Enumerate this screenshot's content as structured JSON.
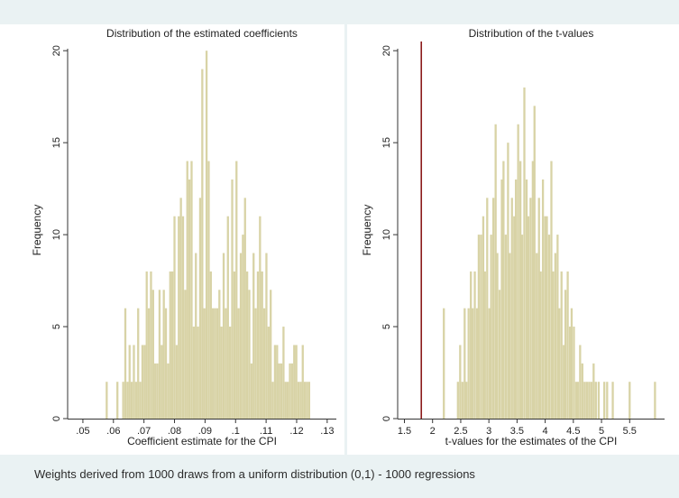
{
  "note": "Weights derived from 1000 draws from a uniform distribution (0,1) - 1000 regressions",
  "colors": {
    "bar": "#d8d3a6",
    "marker_line": "#8b1a1a",
    "panel_bg": "#ffffff",
    "page_bg": "#eaf2f3"
  },
  "chart_data": [
    {
      "type": "bar",
      "title": "Distribution of the estimated coefficients",
      "xlabel": "Coefficient estimate for the CPI",
      "ylabel": "Frequency",
      "xlim": [
        0.045,
        0.133
      ],
      "ylim": [
        0,
        20.5
      ],
      "xticks": [
        0.05,
        0.06,
        0.07,
        0.08,
        0.09,
        0.1,
        0.11,
        0.12,
        0.13
      ],
      "xtick_labels": [
        ".05",
        ".06",
        ".07",
        ".08",
        ".09",
        ".1",
        ".11",
        ".12",
        ".13"
      ],
      "yticks": [
        0,
        5,
        10,
        15,
        20
      ],
      "ytick_labels": [
        "0",
        "5",
        "10",
        "15",
        "20"
      ],
      "bin_width": 0.00068,
      "x": [
        0.0578,
        0.0613,
        0.0632,
        0.0639,
        0.0646,
        0.0653,
        0.066,
        0.0667,
        0.0674,
        0.0681,
        0.0688,
        0.0695,
        0.0702,
        0.0709,
        0.0716,
        0.0723,
        0.073,
        0.0737,
        0.0744,
        0.0751,
        0.0758,
        0.0765,
        0.0772,
        0.0779,
        0.0786,
        0.0793,
        0.08,
        0.0807,
        0.0814,
        0.0821,
        0.0828,
        0.0835,
        0.0842,
        0.0849,
        0.0856,
        0.0863,
        0.087,
        0.0877,
        0.0884,
        0.0891,
        0.0898,
        0.0905,
        0.0912,
        0.0919,
        0.0926,
        0.0933,
        0.094,
        0.0947,
        0.0954,
        0.0961,
        0.0968,
        0.0975,
        0.0982,
        0.0989,
        0.0996,
        0.1003,
        0.101,
        0.1017,
        0.1024,
        0.1031,
        0.1038,
        0.1045,
        0.1052,
        0.1059,
        0.1066,
        0.1073,
        0.108,
        0.1087,
        0.1094,
        0.1101,
        0.1108,
        0.1115,
        0.1122,
        0.1129,
        0.1136,
        0.1143,
        0.115,
        0.1157,
        0.1164,
        0.1171,
        0.1178,
        0.1185,
        0.1192,
        0.1199,
        0.1206,
        0.1213,
        0.122,
        0.1227,
        0.1234,
        0.1241
      ],
      "values": [
        2,
        2,
        2,
        6,
        2,
        4,
        2,
        4,
        2,
        6,
        2,
        4,
        4,
        8,
        6,
        8,
        7,
        3,
        3,
        7,
        4,
        7,
        6,
        3,
        8,
        8,
        11,
        4,
        11,
        12,
        11,
        7,
        14,
        13,
        14,
        5,
        9,
        5,
        12,
        19,
        6,
        20,
        14,
        8,
        6,
        6,
        6,
        7,
        5,
        9,
        6,
        11,
        5,
        13,
        8,
        14,
        6,
        9,
        10,
        12,
        8,
        7,
        3,
        9,
        6,
        8,
        11,
        8,
        6,
        9,
        5,
        7,
        2,
        4,
        4,
        3,
        3,
        5,
        2,
        2,
        3,
        3,
        4,
        4,
        2,
        2,
        4,
        2,
        2,
        2
      ]
    },
    {
      "type": "bar",
      "title": "Distribution of the t-values",
      "xlabel": "t-values for the estimates of the CPI",
      "ylabel": "Frequency",
      "xlim": [
        1.38,
        6.12
      ],
      "ylim": [
        0,
        20.5
      ],
      "xticks": [
        1.5,
        2,
        2.5,
        3,
        3.5,
        4,
        4.5,
        5,
        5.5
      ],
      "xtick_labels": [
        "1.5",
        "2",
        "2.5",
        "3",
        "3.5",
        "4",
        "4.5",
        "5",
        "5.5"
      ],
      "yticks": [
        0,
        5,
        10,
        15,
        20
      ],
      "ytick_labels": [
        "0",
        "5",
        "10",
        "15",
        "20"
      ],
      "vline": 1.8,
      "bin_width": 0.0368,
      "x": [
        2.2,
        2.45,
        2.49,
        2.53,
        2.57,
        2.6,
        2.64,
        2.68,
        2.71,
        2.75,
        2.79,
        2.82,
        2.86,
        2.9,
        2.93,
        2.97,
        3.01,
        3.04,
        3.08,
        3.12,
        3.15,
        3.19,
        3.23,
        3.26,
        3.3,
        3.34,
        3.37,
        3.41,
        3.45,
        3.48,
        3.52,
        3.56,
        3.59,
        3.63,
        3.67,
        3.7,
        3.74,
        3.78,
        3.81,
        3.85,
        3.89,
        3.92,
        3.96,
        4,
        4.03,
        4.07,
        4.11,
        4.14,
        4.18,
        4.22,
        4.25,
        4.29,
        4.33,
        4.36,
        4.4,
        4.44,
        4.47,
        4.51,
        4.55,
        4.58,
        4.62,
        4.66,
        4.7,
        4.74,
        4.78,
        4.82,
        4.86,
        4.9,
        4.95,
        5.05,
        5.1,
        5.2,
        5.5,
        5.95
      ],
      "values": [
        6,
        2,
        4,
        2,
        6,
        2,
        6,
        8,
        6,
        8,
        6,
        10,
        10,
        11,
        8,
        12,
        6,
        10,
        12,
        16,
        9,
        7,
        13,
        14,
        10,
        15,
        9,
        12,
        11,
        13,
        16,
        14,
        10,
        18,
        13,
        11,
        12,
        14,
        17,
        9,
        12,
        8,
        13,
        11,
        11,
        10,
        14,
        8,
        9,
        10,
        6,
        8,
        4,
        7,
        8,
        5,
        6,
        5,
        2,
        2,
        4,
        3,
        2,
        2,
        2,
        2,
        3,
        2,
        2,
        2,
        2,
        2,
        2,
        2
      ]
    }
  ]
}
